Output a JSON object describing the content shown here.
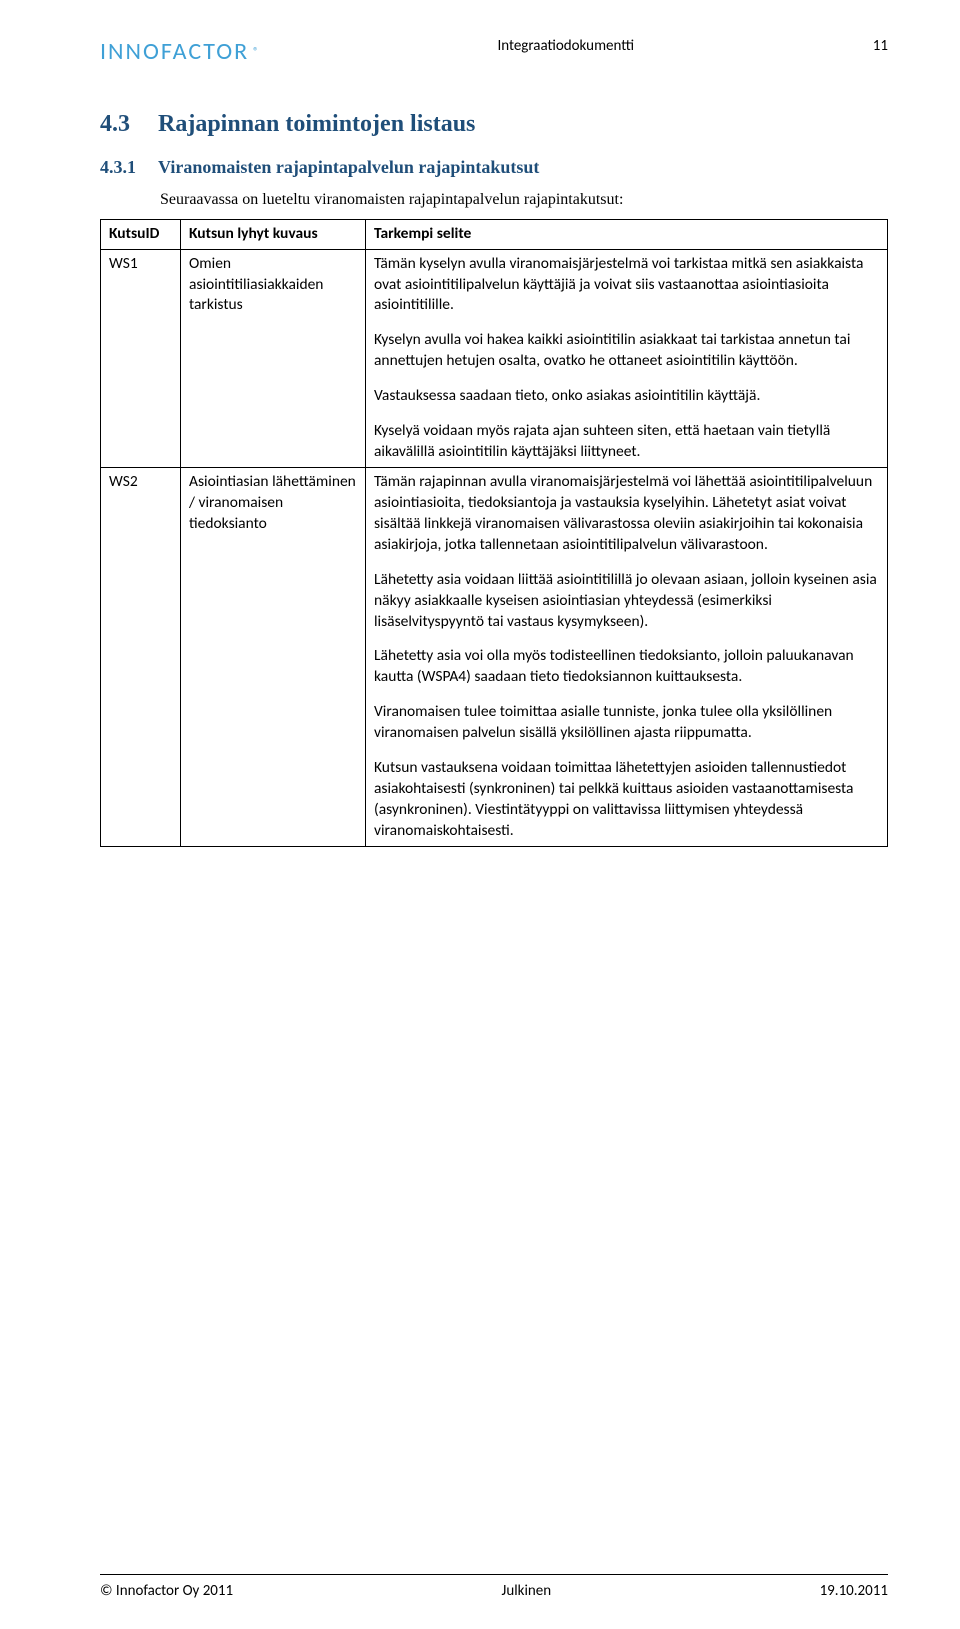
{
  "header": {
    "logo_text": "INNOFACTOR",
    "logo_reg": "®",
    "doc_title": "Integraatiodokumentti",
    "page_number": "11"
  },
  "section": {
    "num": "4.3",
    "title": "Rajapinnan toimintojen listaus"
  },
  "subsection": {
    "num": "4.3.1",
    "title": "Viranomaisten rajapintapalvelun rajapintakutsut"
  },
  "intro_text": "Seuraavassa on lueteltu viranomaisten rajapintapalvelun rajapintakutsut:",
  "table": {
    "headers": {
      "id": "KutsuID",
      "short": "Kutsun lyhyt kuvaus",
      "detail": "Tarkempi selite"
    },
    "rows": [
      {
        "id": "WS1",
        "short": "Omien asiointitiliasiakkaiden tarkistus",
        "detail_paragraphs": [
          "Tämän kyselyn avulla viranomaisjärjestelmä voi tarkistaa mitkä sen asiakkaista ovat asiointitilipalvelun käyttäjiä ja voivat siis vastaanottaa asiointiasioita asiointitilille.",
          "Kyselyn avulla voi hakea kaikki asiointitilin asiakkaat tai tarkistaa annetun tai annettujen hetujen osalta, ovatko he ottaneet asiointitilin käyttöön.",
          "Vastauksessa saadaan tieto, onko asiakas asiointitilin käyttäjä.",
          "Kyselyä voidaan myös rajata ajan suhteen siten, että haetaan vain tietyllä aikavälillä asiointitilin käyttäjäksi liittyneet."
        ]
      },
      {
        "id": "WS2",
        "short": "Asiointiasian lähettäminen / viranomaisen tiedoksianto",
        "detail_paragraphs": [
          "Tämän rajapinnan avulla viranomaisjärjestelmä voi lähettää asiointitilipalveluun asiointiasioita, tiedoksiantoja ja vastauksia kyselyihin. Lähetetyt asiat voivat sisältää linkkejä viranomaisen välivarastossa oleviin asiakirjoihin tai kokonaisia asiakirjoja, jotka tallennetaan asiointitilipalvelun välivarastoon.",
          "Lähetetty asia voidaan liittää asiointitilillä jo olevaan asiaan, jolloin kyseinen asia näkyy asiakkaalle kyseisen asiointiasian yhteydessä (esimerkiksi lisäselvityspyyntö tai vastaus kysymykseen).",
          "Lähetetty asia voi olla myös todisteellinen tiedoksianto, jolloin paluukanavan kautta (WSPA4) saadaan tieto tiedoksiannon kuittauksesta.",
          "Viranomaisen tulee toimittaa asialle tunniste, jonka tulee olla yksilöllinen viranomaisen palvelun sisällä yksilöllinen ajasta riippumatta.",
          "Kutsun vastauksena voidaan toimittaa lähetettyjen asioiden tallennustiedot asiakohtaisesti (synkroninen) tai pelkkä kuittaus asioiden vastaanottamisesta (asynkroninen). Viestintätyyppi on valittavissa liittymisen yhteydessä viranomaiskohtaisesti."
        ]
      }
    ]
  },
  "footer": {
    "left": "© Innofactor Oy 2011",
    "center": "Julkinen",
    "right": "19.10.2011"
  }
}
